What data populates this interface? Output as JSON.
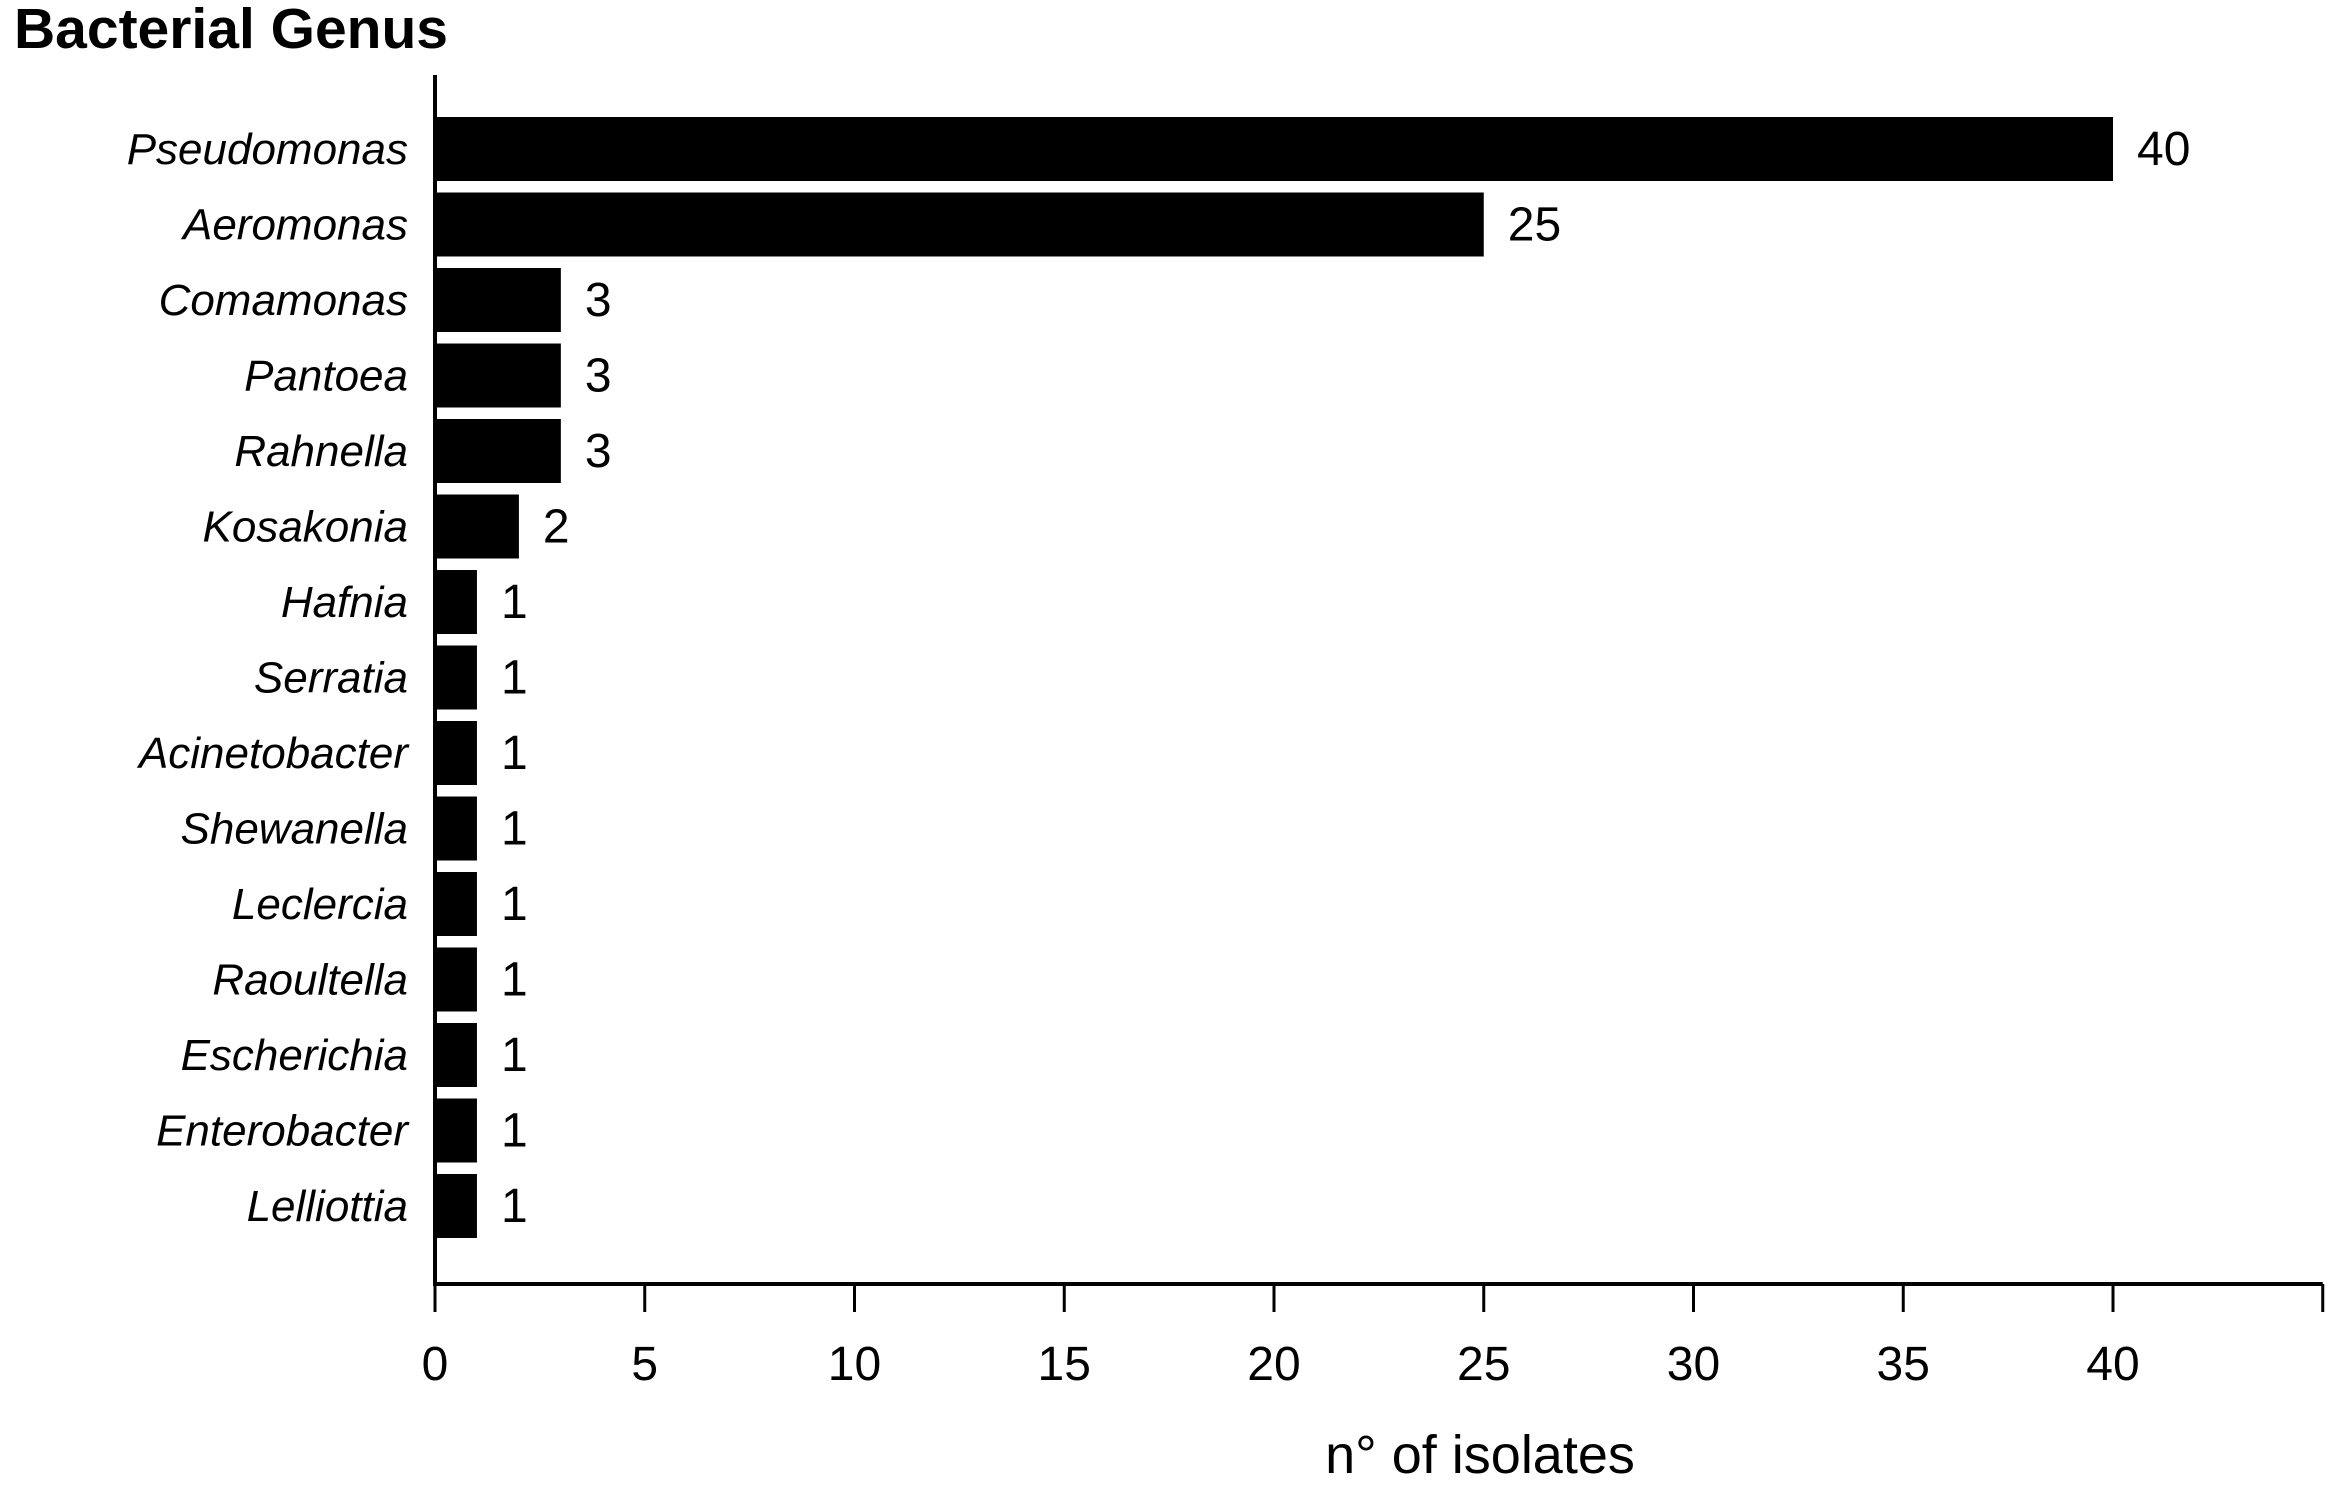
{
  "figure": {
    "title": "Bacterial Genus",
    "xlabel": "n° of isolates"
  },
  "chart_data": {
    "type": "bar",
    "orientation": "horizontal",
    "title": "Bacterial Genus",
    "xlabel": "n° of isolates",
    "ylabel": "",
    "categories": [
      "Pseudomonas",
      "Aeromonas",
      "Comamonas",
      "Pantoea",
      "Rahnella",
      "Kosakonia",
      "Hafnia",
      "Serratia",
      "Acinetobacter",
      "Shewanella",
      "Leclercia",
      "Raoultella",
      "Escherichia",
      "Enterobacter",
      "Lelliottia"
    ],
    "values": [
      40,
      25,
      3,
      3,
      3,
      2,
      1,
      1,
      1,
      1,
      1,
      1,
      1,
      1,
      1
    ],
    "value_labels": [
      "40",
      "25",
      "3",
      "3",
      "3",
      "2",
      "1",
      "1",
      "1",
      "1",
      "1",
      "1",
      "1",
      "1",
      "1"
    ],
    "xlim": [
      0,
      45
    ],
    "xticks": [
      0,
      5,
      10,
      15,
      20,
      25,
      30,
      35,
      40
    ],
    "unlabeled_xticks": [
      45
    ],
    "grid": false,
    "legend": false,
    "category_style": "italic",
    "bar_color": "#000000",
    "axis_color": "#000000",
    "text_color": "#000000",
    "background_color": "#ffffff"
  }
}
